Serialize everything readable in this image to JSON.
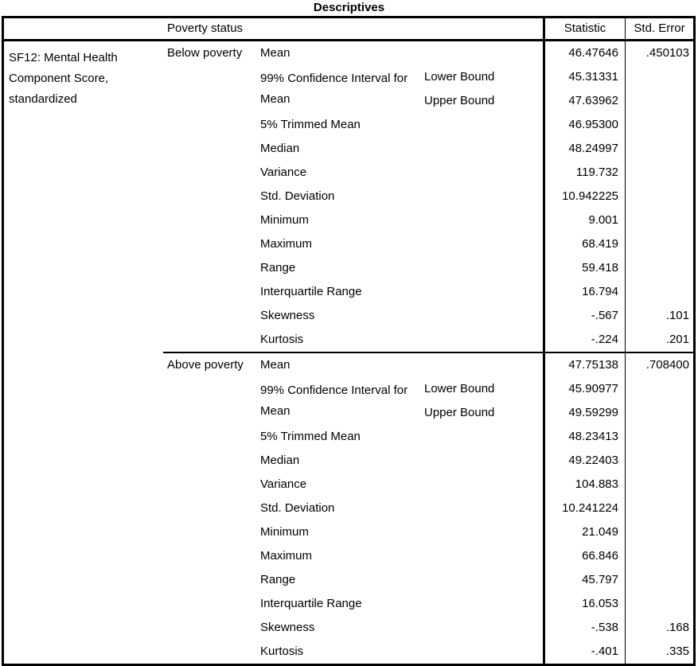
{
  "title": "Descriptives",
  "header": {
    "factor_label": "Poverty status",
    "statistic": "Statistic",
    "std_error": "Std. Error"
  },
  "variable_label": "SF12: Mental Health Component Score, standardized",
  "groups": [
    {
      "label": "Below poverty",
      "mean": {
        "label": "Mean",
        "statistic": "46.47646",
        "std_error": ".450103"
      },
      "ci": {
        "label": "99% Confidence Interval for Mean",
        "lower_label": "Lower Bound",
        "upper_label": "Upper Bound",
        "lower_statistic": "45.31331",
        "upper_statistic": "47.63962"
      },
      "rows": [
        {
          "label": "5% Trimmed Mean",
          "statistic": "46.95300",
          "std_error": ""
        },
        {
          "label": "Median",
          "statistic": "48.24997",
          "std_error": ""
        },
        {
          "label": "Variance",
          "statistic": "119.732",
          "std_error": ""
        },
        {
          "label": "Std. Deviation",
          "statistic": "10.942225",
          "std_error": ""
        },
        {
          "label": "Minimum",
          "statistic": "9.001",
          "std_error": ""
        },
        {
          "label": "Maximum",
          "statistic": "68.419",
          "std_error": ""
        },
        {
          "label": "Range",
          "statistic": "59.418",
          "std_error": ""
        },
        {
          "label": "Interquartile Range",
          "statistic": "16.794",
          "std_error": ""
        },
        {
          "label": "Skewness",
          "statistic": "-.567",
          "std_error": ".101"
        },
        {
          "label": "Kurtosis",
          "statistic": "-.224",
          "std_error": ".201"
        }
      ]
    },
    {
      "label": "Above poverty",
      "mean": {
        "label": "Mean",
        "statistic": "47.75138",
        "std_error": ".708400"
      },
      "ci": {
        "label": "99% Confidence Interval for Mean",
        "lower_label": "Lower Bound",
        "upper_label": "Upper Bound",
        "lower_statistic": "45.90977",
        "upper_statistic": "49.59299"
      },
      "rows": [
        {
          "label": "5% Trimmed Mean",
          "statistic": "48.23413",
          "std_error": ""
        },
        {
          "label": "Median",
          "statistic": "49.22403",
          "std_error": ""
        },
        {
          "label": "Variance",
          "statistic": "104.883",
          "std_error": ""
        },
        {
          "label": "Std. Deviation",
          "statistic": "10.241224",
          "std_error": ""
        },
        {
          "label": "Minimum",
          "statistic": "21.049",
          "std_error": ""
        },
        {
          "label": "Maximum",
          "statistic": "66.846",
          "std_error": ""
        },
        {
          "label": "Range",
          "statistic": "45.797",
          "std_error": ""
        },
        {
          "label": "Interquartile Range",
          "statistic": "16.053",
          "std_error": ""
        },
        {
          "label": "Skewness",
          "statistic": "-.538",
          "std_error": ".168"
        },
        {
          "label": "Kurtosis",
          "statistic": "-.401",
          "std_error": ".335"
        }
      ]
    }
  ]
}
